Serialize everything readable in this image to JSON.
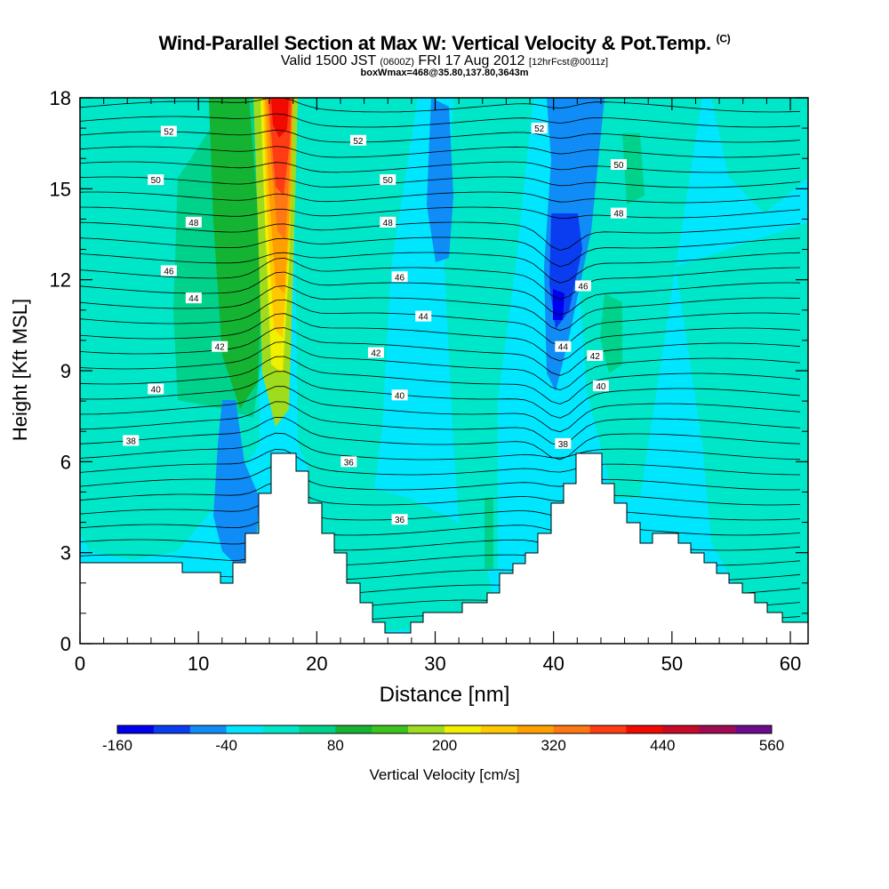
{
  "header": {
    "title": "Wind-Parallel Section at Max W: Vertical Velocity & Pot.Temp.",
    "title_mark": "(C)",
    "valid_prefix": "Valid 1500 JST",
    "valid_zulu": "(0600Z)",
    "valid_date": "FRI 17 Aug 2012",
    "forecast": "[12hrFcst@0011z]",
    "boxline": "boxWmax=468@35.80,137.80,3643m"
  },
  "chart_data": {
    "type": "heatmap",
    "xlabel": "Distance [nm]",
    "ylabel": "Height [Kft MSL]",
    "xlim": [
      0,
      61.5
    ],
    "ylim": [
      0,
      18
    ],
    "xticks": [
      0,
      10,
      20,
      30,
      40,
      50,
      60
    ],
    "yticks": [
      0,
      3,
      6,
      9,
      12,
      15,
      18
    ],
    "colorbar": {
      "label": "Vertical Velocity [cm/s]",
      "tick_labels": [
        "-160",
        "-40",
        "80",
        "200",
        "320",
        "440",
        "560"
      ],
      "min": -160,
      "step": 40,
      "colors": [
        "#0000f0",
        "#0a3cf0",
        "#0f8cf5",
        "#00e6ff",
        "#00e6c8",
        "#00d28c",
        "#14b432",
        "#3cc31e",
        "#a0dc1e",
        "#f0f000",
        "#ffc800",
        "#ffa000",
        "#ff7814",
        "#ff3c14",
        "#f00a00",
        "#c80a28",
        "#a00a50",
        "#6e0a8c"
      ]
    },
    "theta_labels": [
      {
        "value": "52",
        "x": 7.5,
        "y": 16.9
      },
      {
        "value": "52",
        "x": 23.5,
        "y": 16.6
      },
      {
        "value": "52",
        "x": 38.8,
        "y": 17.0
      },
      {
        "value": "50",
        "x": 6.4,
        "y": 15.3
      },
      {
        "value": "50",
        "x": 26.0,
        "y": 15.3
      },
      {
        "value": "50",
        "x": 45.5,
        "y": 15.8
      },
      {
        "value": "48",
        "x": 9.6,
        "y": 13.9
      },
      {
        "value": "48",
        "x": 26.0,
        "y": 13.9
      },
      {
        "value": "48",
        "x": 45.5,
        "y": 14.2
      },
      {
        "value": "46",
        "x": 7.5,
        "y": 12.3
      },
      {
        "value": "46",
        "x": 27.0,
        "y": 12.1
      },
      {
        "value": "46",
        "x": 42.5,
        "y": 11.8
      },
      {
        "value": "44",
        "x": 9.6,
        "y": 11.4
      },
      {
        "value": "44",
        "x": 29.0,
        "y": 10.8
      },
      {
        "value": "44",
        "x": 40.8,
        "y": 9.8
      },
      {
        "value": "42",
        "x": 11.8,
        "y": 9.8
      },
      {
        "value": "42",
        "x": 25.0,
        "y": 9.6
      },
      {
        "value": "42",
        "x": 43.5,
        "y": 9.5
      },
      {
        "value": "40",
        "x": 6.4,
        "y": 8.4
      },
      {
        "value": "40",
        "x": 27.0,
        "y": 8.2
      },
      {
        "value": "40",
        "x": 44.0,
        "y": 8.5
      },
      {
        "value": "38",
        "x": 4.3,
        "y": 6.7
      },
      {
        "value": "38",
        "x": 40.8,
        "y": 6.6
      },
      {
        "value": "36",
        "x": 22.7,
        "y": 6.0
      },
      {
        "value": "36",
        "x": 27.0,
        "y": 4.1
      }
    ]
  }
}
